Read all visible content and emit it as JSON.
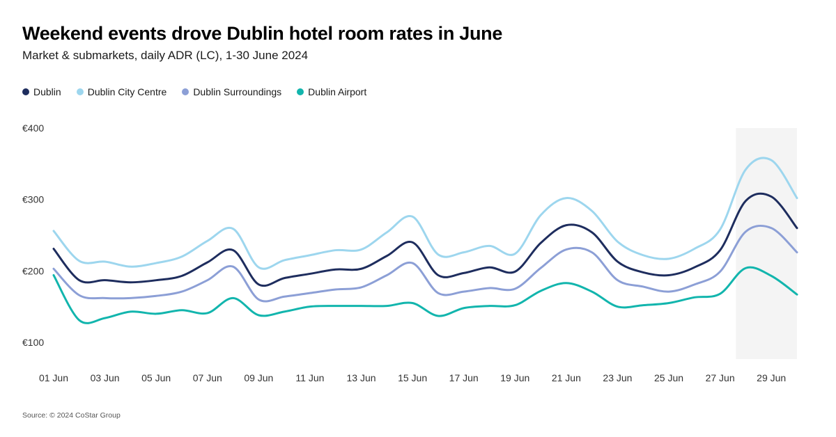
{
  "title": "Weekend events drove Dublin hotel room rates in June",
  "subtitle": "Market & submarkets, daily ADR (LC), 1-30 June 2024",
  "source": "Source: © 2024 CoStar Group",
  "chart_data": {
    "type": "line",
    "title": "Weekend events drove Dublin hotel room rates in June",
    "subtitle": "Market & submarkets, daily ADR (LC), 1-30 June 2024",
    "xlabel": "",
    "ylabel": "",
    "ylim": [
      70,
      400
    ],
    "y_ticks": [
      {
        "value": 400,
        "label": "€400"
      },
      {
        "value": 300,
        "label": "€300"
      },
      {
        "value": 200,
        "label": "€200"
      },
      {
        "value": 100,
        "label": "€100"
      }
    ],
    "x": [
      1,
      2,
      3,
      4,
      5,
      6,
      7,
      8,
      9,
      10,
      11,
      12,
      13,
      14,
      15,
      16,
      17,
      18,
      19,
      20,
      21,
      22,
      23,
      24,
      25,
      26,
      27,
      28,
      29,
      30
    ],
    "x_ticks": [
      {
        "day": 1,
        "label": "01 Jun"
      },
      {
        "day": 3,
        "label": "03 Jun"
      },
      {
        "day": 5,
        "label": "05 Jun"
      },
      {
        "day": 7,
        "label": "07 Jun"
      },
      {
        "day": 9,
        "label": "09 Jun"
      },
      {
        "day": 11,
        "label": "11 Jun"
      },
      {
        "day": 13,
        "label": "13 Jun"
      },
      {
        "day": 15,
        "label": "15 Jun"
      },
      {
        "day": 17,
        "label": "17 Jun"
      },
      {
        "day": 19,
        "label": "19 Jun"
      },
      {
        "day": 21,
        "label": "21 Jun"
      },
      {
        "day": 23,
        "label": "23 Jun"
      },
      {
        "day": 25,
        "label": "25 Jun"
      },
      {
        "day": 27,
        "label": "27 Jun"
      },
      {
        "day": 29,
        "label": "29 Jun"
      }
    ],
    "highlight_range": [
      28,
      30
    ],
    "legend_position": "top-left",
    "grid": false,
    "series": [
      {
        "name": "Dublin",
        "color": "#1e2d5e",
        "values": [
          231,
          187,
          187,
          184,
          187,
          193,
          212,
          229,
          181,
          190,
          196,
          202,
          203,
          221,
          240,
          194,
          197,
          205,
          199,
          239,
          264,
          254,
          213,
          198,
          194,
          205,
          229,
          298,
          304,
          260
        ]
      },
      {
        "name": "Dublin City Centre",
        "color": "#9dd6ee",
        "values": [
          256,
          214,
          213,
          206,
          211,
          220,
          242,
          259,
          205,
          215,
          222,
          229,
          230,
          254,
          276,
          223,
          226,
          235,
          224,
          278,
          302,
          284,
          241,
          222,
          217,
          231,
          258,
          342,
          355,
          302
        ]
      },
      {
        "name": "Dublin Surroundings",
        "color": "#8c9fd6",
        "values": [
          203,
          166,
          162,
          162,
          165,
          171,
          187,
          206,
          160,
          164,
          169,
          174,
          177,
          194,
          211,
          169,
          171,
          176,
          175,
          204,
          230,
          226,
          187,
          178,
          171,
          181,
          199,
          255,
          260,
          226
        ]
      },
      {
        "name": "Dublin Airport",
        "color": "#12b5ad",
        "values": [
          194,
          131,
          134,
          143,
          140,
          145,
          141,
          162,
          138,
          143,
          150,
          151,
          151,
          151,
          155,
          137,
          148,
          151,
          152,
          172,
          183,
          171,
          150,
          152,
          155,
          163,
          168,
          204,
          193,
          167
        ]
      }
    ]
  }
}
